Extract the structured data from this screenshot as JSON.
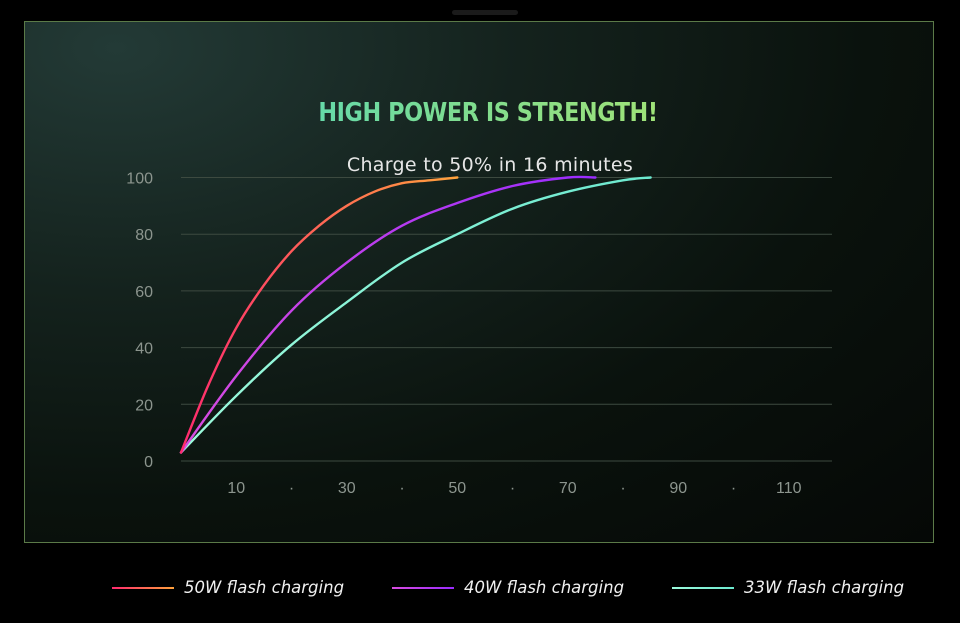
{
  "header": {
    "title": "HIGH POWER IS STRENGTH!",
    "subtitle": "Charge to 50% in 16 minutes"
  },
  "chart_data": {
    "type": "line",
    "title": "HIGH POWER IS STRENGTH!",
    "subtitle": "Charge to 50% in 16 minutes",
    "xlabel": "",
    "ylabel": "",
    "xlim": [
      0,
      120
    ],
    "ylim": [
      0,
      100
    ],
    "x_ticks": [
      "10",
      "·",
      "30",
      "·",
      "50",
      "·",
      "70",
      "·",
      "90",
      "·",
      "110"
    ],
    "x_tick_values": [
      10,
      20,
      30,
      40,
      50,
      60,
      70,
      80,
      90,
      100,
      110
    ],
    "y_ticks": [
      "0",
      "20",
      "40",
      "60",
      "80",
      "100"
    ],
    "y_tick_values": [
      0,
      20,
      40,
      60,
      80,
      100
    ],
    "grid": "horizontal",
    "legend_position": "bottom",
    "series": [
      {
        "name": "50W flash charging",
        "color_start": "#ff2a6e",
        "color_end": "#ffa23c",
        "x": [
          0,
          5,
          10,
          15,
          20,
          25,
          30,
          35,
          40,
          45,
          50
        ],
        "y": [
          3,
          27,
          47,
          62,
          74,
          83,
          90,
          95,
          98,
          99,
          100
        ]
      },
      {
        "name": "40W flash charging",
        "color_start": "#d84ce0",
        "color_end": "#9a2cff",
        "x": [
          0,
          10,
          20,
          30,
          40,
          50,
          60,
          70,
          75
        ],
        "y": [
          3,
          30,
          53,
          70,
          83,
          91,
          97,
          100,
          100
        ]
      },
      {
        "name": "33W flash charging",
        "color_start": "#9cfadc",
        "color_end": "#6ce9cf",
        "x": [
          0,
          10,
          20,
          30,
          40,
          50,
          60,
          70,
          80,
          85
        ],
        "y": [
          3,
          23,
          41,
          56,
          70,
          80,
          89,
          95,
          99,
          100
        ]
      }
    ]
  }
}
